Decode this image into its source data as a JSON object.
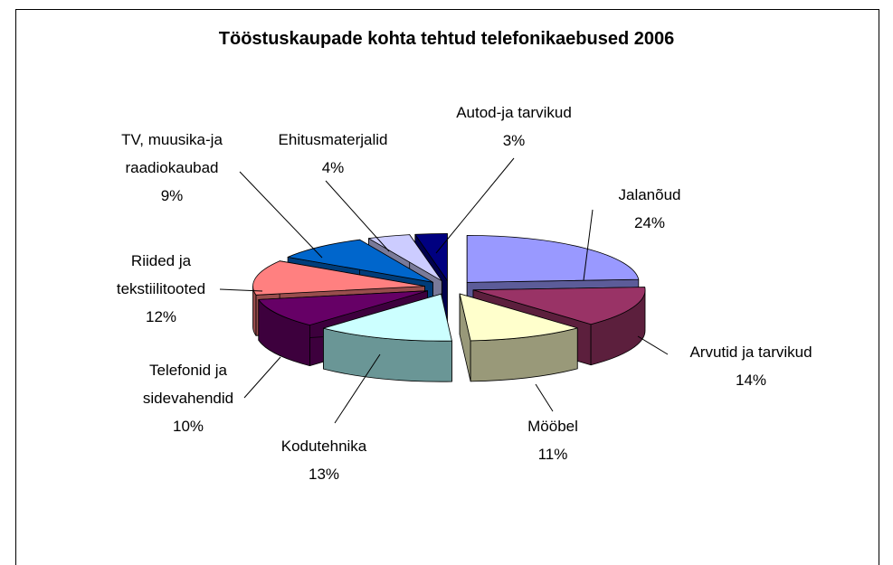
{
  "chart_data": {
    "type": "pie3d",
    "title": "Tööstuskaupade kohta tehtud telefonikaebused 2006",
    "categories": [
      "Jalanõud",
      "Arvutid ja tarvikud",
      "Mööbel",
      "Kodutehnika",
      "Telefonid ja sidevahendid",
      "Riided ja tekstiilitooted",
      "TV, muusika-ja raadiokaubad",
      "Ehitusmaterjalid",
      "Autod-ja tarvikud"
    ],
    "values": [
      24,
      14,
      11,
      13,
      10,
      12,
      9,
      4,
      3
    ],
    "value_labels": [
      "24%",
      "14%",
      "11%",
      "13%",
      "10%",
      "12%",
      "9%",
      "4%",
      "3%"
    ],
    "colors": [
      "#9999ff",
      "#993366",
      "#ffffcc",
      "#ccffff",
      "#660066",
      "#ff8080",
      "#0066cc",
      "#ccccff",
      "#000080"
    ],
    "side_colors": [
      "#5c5c99",
      "#5c1f3d",
      "#999979",
      "#6a9696",
      "#3d003d",
      "#994d4d",
      "#003d7a",
      "#7a7a99",
      "#00004d"
    ]
  }
}
